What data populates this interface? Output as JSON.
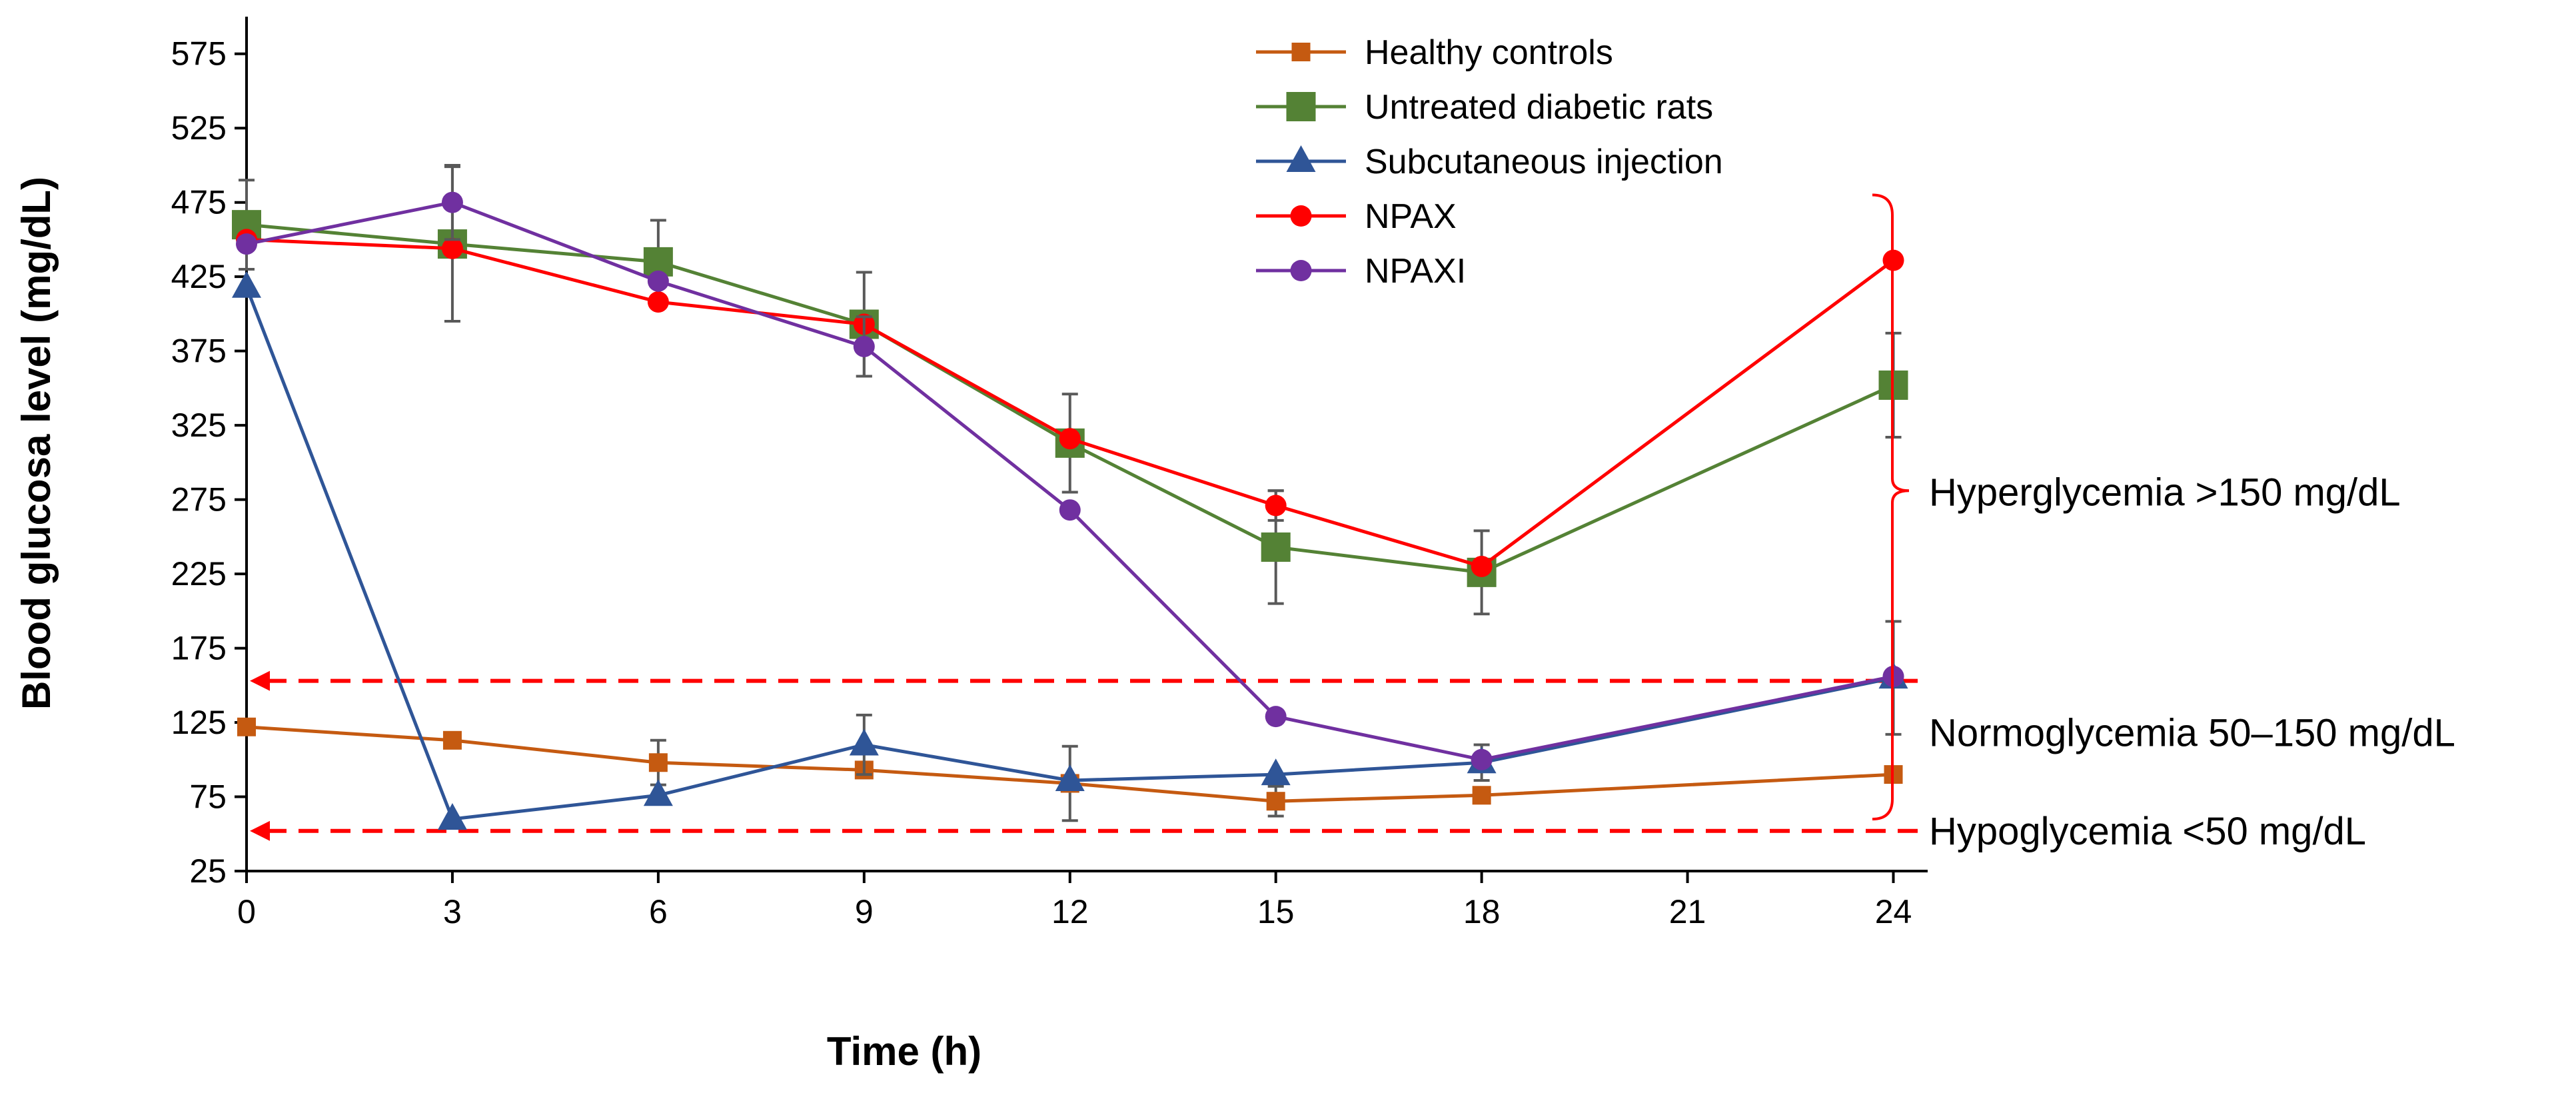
{
  "chart_data": {
    "type": "line",
    "title": "",
    "xlabel": "Time (h)",
    "ylabel": "Blood glucosa level (mg/dL)",
    "xlim": [
      0,
      24.5
    ],
    "ylim": [
      25,
      600
    ],
    "xticks": [
      0,
      3,
      6,
      9,
      12,
      15,
      18,
      21,
      24
    ],
    "yticks": [
      25,
      75,
      125,
      175,
      225,
      275,
      325,
      375,
      425,
      475,
      525,
      575
    ],
    "grid": false,
    "legend_position": "top-center",
    "series": [
      {
        "name": "Healthy controls",
        "color": "#C55A11",
        "marker": "square-small",
        "x": [
          0,
          3,
          6,
          9,
          12,
          15,
          18,
          24
        ],
        "y": [
          122,
          113,
          98,
          93,
          84,
          72,
          76,
          90
        ],
        "err": [
          0,
          0,
          15,
          0,
          25,
          10,
          0,
          0
        ]
      },
      {
        "name": "Untreated diabetic rats",
        "color": "#548235",
        "marker": "square",
        "x": [
          0,
          3,
          6,
          9,
          12,
          15,
          18,
          24
        ],
        "y": [
          460,
          447,
          435,
          393,
          313,
          243,
          226,
          352
        ],
        "err": [
          30,
          52,
          28,
          35,
          33,
          38,
          28,
          35
        ]
      },
      {
        "name": "Subcutaneous injection",
        "color": "#2F5597",
        "marker": "triangle",
        "x": [
          0,
          3,
          6,
          9,
          12,
          15,
          18,
          24
        ],
        "y": [
          418,
          60,
          76,
          110,
          86,
          90,
          98,
          155
        ],
        "err": [
          0,
          0,
          0,
          20,
          0,
          0,
          12,
          38
        ]
      },
      {
        "name": "NPAX",
        "color": "#FF0000",
        "marker": "circle",
        "x": [
          0,
          3,
          6,
          9,
          12,
          15,
          18,
          24
        ],
        "y": [
          450,
          444,
          408,
          393,
          316,
          271,
          230,
          436
        ],
        "err": [
          0,
          0,
          0,
          0,
          0,
          10,
          0,
          0
        ]
      },
      {
        "name": "NPAXI",
        "color": "#7030A0",
        "marker": "circle",
        "x": [
          0,
          3,
          6,
          9,
          12,
          15,
          18,
          24
        ],
        "y": [
          447,
          475,
          422,
          378,
          268,
          129,
          100,
          156
        ],
        "err": [
          0,
          25,
          0,
          20,
          0,
          0,
          0,
          0
        ]
      }
    ],
    "reference_lines": [
      {
        "y": 153,
        "color": "#FF0000",
        "style": "dashed"
      },
      {
        "y": 52,
        "color": "#FF0000",
        "style": "dashed"
      }
    ],
    "annotations": [
      {
        "text": "Hyperglycemia >150 mg/dL",
        "y": 280
      },
      {
        "text": "Normoglycemia 50–150 mg/dL",
        "y": 118
      },
      {
        "text": "Hypoglycemia <50 mg/dL",
        "y": 52
      }
    ],
    "bracket": {
      "y_top": 480,
      "y_bottom": 60,
      "y_mid": 281,
      "color": "#FF0000"
    }
  }
}
